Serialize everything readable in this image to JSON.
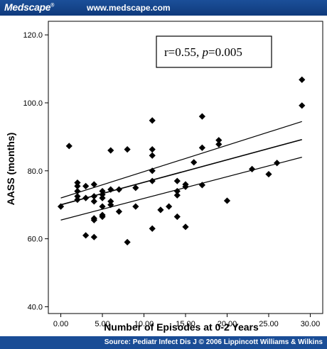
{
  "header": {
    "brand": "Medscape",
    "brand_mark": "®",
    "url": "www.medscape.com"
  },
  "footer": {
    "source": "Source: Pediatr Infect Dis J © 2006 Lippincott Williams & Wilkins"
  },
  "chart_data": {
    "type": "scatter",
    "title": "",
    "xlabel": "Number of Episodes at 0-2 Years",
    "ylabel": "AASS (months)",
    "xlim": [
      -1.5,
      31.5
    ],
    "ylim": [
      38,
      124
    ],
    "x_ticks": [
      0,
      5,
      10,
      15,
      20,
      25,
      30
    ],
    "x_tick_labels": [
      "0.00",
      "5.00",
      "10.00",
      "15.00",
      "20.00",
      "25.00",
      "30.00"
    ],
    "y_ticks": [
      40,
      60,
      80,
      100,
      120
    ],
    "y_tick_labels": [
      "40.0",
      "60.0",
      "80.0",
      "100.0",
      "120.0"
    ],
    "annotation": {
      "r_text": "r=0.55, ",
      "p_symbol": "p",
      "p_text": "=0.005"
    },
    "regression": {
      "fit": [
        [
          0,
          70.0
        ],
        [
          29,
          89.2
        ]
      ],
      "upper_ci": [
        [
          0,
          72.0
        ],
        [
          29,
          94.5
        ]
      ],
      "lower_ci": [
        [
          0,
          65.5
        ],
        [
          29,
          84.0
        ]
      ]
    },
    "points": [
      [
        0,
        69.5
      ],
      [
        1,
        87.3
      ],
      [
        2,
        76.5
      ],
      [
        2,
        75.5
      ],
      [
        2,
        74.0
      ],
      [
        2,
        72.5
      ],
      [
        2,
        71.5
      ],
      [
        3,
        75.5
      ],
      [
        3,
        72.0
      ],
      [
        3,
        61.0
      ],
      [
        4,
        76.0
      ],
      [
        4,
        72.5
      ],
      [
        4,
        71.0
      ],
      [
        4,
        66.0
      ],
      [
        4,
        65.5
      ],
      [
        4,
        60.5
      ],
      [
        5,
        74.0
      ],
      [
        5,
        73.0
      ],
      [
        5,
        72.0
      ],
      [
        5,
        69.5
      ],
      [
        5,
        67.0
      ],
      [
        5,
        66.5
      ],
      [
        6,
        86.0
      ],
      [
        6,
        74.5
      ],
      [
        6,
        71.0
      ],
      [
        6,
        70.0
      ],
      [
        7,
        74.5
      ],
      [
        7,
        68.0
      ],
      [
        8,
        86.3
      ],
      [
        8,
        59.0
      ],
      [
        9,
        75.0
      ],
      [
        9,
        69.5
      ],
      [
        11,
        94.8
      ],
      [
        11,
        86.3
      ],
      [
        11,
        84.5
      ],
      [
        11,
        80.0
      ],
      [
        11,
        77.0
      ],
      [
        11,
        63.0
      ],
      [
        12,
        68.5
      ],
      [
        13,
        69.5
      ],
      [
        14,
        77.0
      ],
      [
        14,
        74.0
      ],
      [
        14,
        72.8
      ],
      [
        14,
        66.5
      ],
      [
        15,
        76.0
      ],
      [
        15,
        75.3
      ],
      [
        15,
        63.5
      ],
      [
        16,
        82.5
      ],
      [
        17,
        96.0
      ],
      [
        17,
        86.8
      ],
      [
        17,
        75.8
      ],
      [
        19,
        89.0
      ],
      [
        19,
        87.8
      ],
      [
        20,
        71.2
      ],
      [
        23,
        80.5
      ],
      [
        25,
        79.0
      ],
      [
        26,
        82.3
      ],
      [
        29,
        106.8
      ],
      [
        29,
        99.2
      ]
    ]
  }
}
